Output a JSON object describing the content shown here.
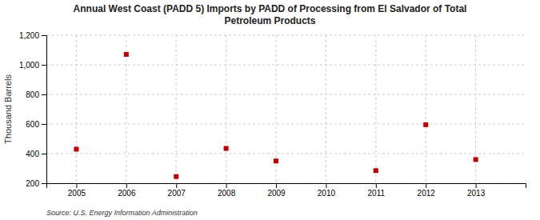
{
  "chart_data": {
    "type": "scatter",
    "title": "Annual West Coast (PADD 5) Imports by PADD of Processing from El Salvador of Total\nPetroleum Products",
    "ylabel": "Thousand Barrels",
    "source": "Source: U.S. Energy Information Administration",
    "x": [
      2005,
      2006,
      2007,
      2008,
      2009,
      2011,
      2012,
      2013
    ],
    "values": [
      430,
      1070,
      245,
      435,
      350,
      285,
      595,
      360
    ],
    "color": "#c00000",
    "marker": "square",
    "xlim": [
      2004.4,
      2014.0
    ],
    "ylim": [
      200,
      1200
    ],
    "xticks": [
      2005,
      2006,
      2007,
      2008,
      2009,
      2010,
      2011,
      2012,
      2013
    ],
    "yticks": [
      200,
      400,
      600,
      800,
      {
        "value": 1000,
        "label": "1,000"
      },
      {
        "value": 1200,
        "label": "1,200"
      }
    ],
    "grid": true
  }
}
